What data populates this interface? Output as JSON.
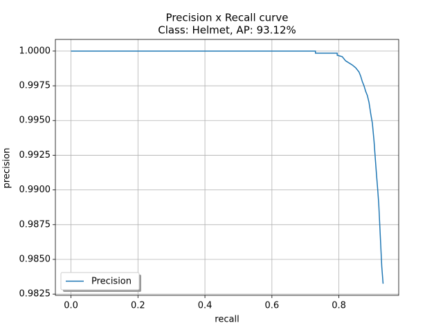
{
  "chart_data": {
    "type": "line",
    "title": "Precision x Recall curve",
    "subtitle": "Class: Helmet, AP: 93.12%",
    "x_label": "recall",
    "y_label": "precision",
    "x": [
      0,
      0.73,
      0.73,
      0.795,
      0.795,
      0.81,
      0.82,
      0.84,
      0.85,
      0.86,
      0.865,
      0.87,
      0.875,
      0.88,
      0.885,
      0.89,
      0.895,
      0.9,
      0.905,
      0.908,
      0.912,
      0.916,
      0.919,
      0.922,
      0.925,
      0.928,
      0.932
    ],
    "series": [
      {
        "name": "Precision",
        "color": "#1f77b4",
        "values": [
          1.0,
          1.0,
          0.99985,
          0.99985,
          0.9997,
          0.9996,
          0.9993,
          0.999,
          0.9988,
          0.9985,
          0.9982,
          0.9978,
          0.9975,
          0.9971,
          0.9968,
          0.9963,
          0.9955,
          0.9948,
          0.9935,
          0.9925,
          0.9912,
          0.99,
          0.989,
          0.9875,
          0.986,
          0.9845,
          0.98325
        ]
      }
    ],
    "xlim": [
      -0.0466,
      0.9786
    ],
    "ylim": [
      0.98241,
      1.00084
    ],
    "xticks": [
      {
        "value": 0,
        "label": "0.0"
      },
      0.2,
      0.4,
      0.6,
      0.8
    ],
    "yticks": [
      0.9825,
      {
        "value": 0.985,
        "label": "0.9850"
      },
      0.9875,
      {
        "value": 0.99,
        "label": "0.9900"
      },
      0.9925,
      {
        "value": 0.995,
        "label": "0.9950"
      },
      0.9975,
      {
        "value": 1.0,
        "label": "1.0000"
      }
    ],
    "grid": true,
    "legend": "lower left"
  }
}
